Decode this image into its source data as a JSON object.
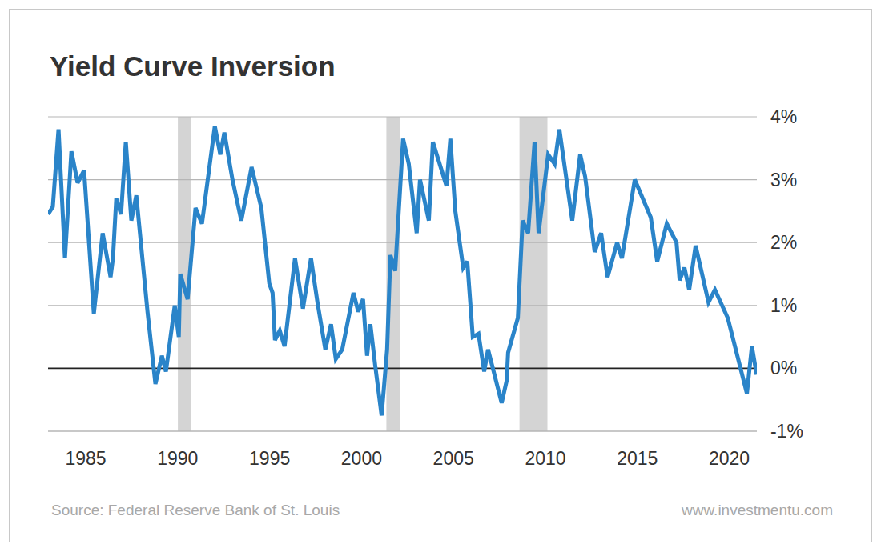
{
  "chart_data": {
    "type": "line",
    "title": "Yield Curve Inversion",
    "source": "Source: Federal Reserve Bank of St. Louis",
    "credit": "www.investmentu.com",
    "color": "#2a84c9",
    "grid": true,
    "xlim": [
      1982.95,
      2021.5
    ],
    "xticks": [
      1985,
      1990,
      1995,
      2000,
      2005,
      2010,
      2015,
      2020
    ],
    "ylim": [
      -1,
      4
    ],
    "yticks": [
      {
        "value": -1,
        "label": "-1%"
      },
      {
        "value": 0,
        "label": "0%"
      },
      {
        "value": 1,
        "label": "1%"
      },
      {
        "value": 2,
        "label": "2%"
      },
      {
        "value": 3,
        "label": "3%"
      },
      {
        "value": 4,
        "label": "4%"
      }
    ],
    "recessions": [
      [
        1990.01,
        1990.71
      ],
      [
        2001.35,
        2002.09
      ],
      [
        2008.59,
        2010.11
      ]
    ],
    "x": [
      1982.95,
      1983.21,
      1983.52,
      1983.87,
      1984.22,
      1984.56,
      1984.91,
      1985.44,
      1985.92,
      1986.35,
      1986.48,
      1986.66,
      1986.92,
      1987.18,
      1987.48,
      1987.75,
      1988.36,
      1988.79,
      1989.14,
      1989.36,
      1989.84,
      1990.06,
      1990.14,
      1990.54,
      1990.97,
      1991.32,
      1992.02,
      1992.32,
      1992.54,
      1992.98,
      1993.46,
      1994.02,
      1994.55,
      1994.98,
      1995.16,
      1995.29,
      1995.55,
      1995.81,
      1996.38,
      1996.81,
      1997.25,
      1997.6,
      1998.03,
      1998.34,
      1998.6,
      1998.95,
      1999.56,
      1999.82,
      2000.08,
      2000.3,
      2000.48,
      2000.74,
      2001.09,
      2001.39,
      2001.57,
      2001.83,
      2002.26,
      2002.57,
      2003.0,
      2003.18,
      2003.66,
      2003.88,
      2004.62,
      2004.83,
      2005.1,
      2005.53,
      2005.75,
      2006.05,
      2006.36,
      2006.67,
      2006.88,
      2007.62,
      2007.89,
      2007.97,
      2008.5,
      2008.76,
      2009.06,
      2009.41,
      2009.63,
      2010.15,
      2010.5,
      2010.76,
      2011.46,
      2011.89,
      2012.16,
      2012.68,
      2013.03,
      2013.38,
      2013.9,
      2014.16,
      2014.86,
      2015.73,
      2016.08,
      2016.6,
      2017.13,
      2017.3,
      2017.56,
      2017.82,
      2018.17,
      2018.87,
      2019.22,
      2019.92,
      2020.96,
      2021.23,
      2021.49
    ],
    "values": [
      2.45,
      2.57,
      3.8,
      1.75,
      3.45,
      2.95,
      3.15,
      0.87,
      2.15,
      1.45,
      1.75,
      2.7,
      2.45,
      3.6,
      2.35,
      2.75,
      0.9,
      -0.25,
      0.2,
      -0.05,
      1.0,
      0.5,
      1.5,
      1.1,
      2.55,
      2.3,
      3.85,
      3.4,
      3.75,
      3.0,
      2.35,
      3.2,
      2.55,
      1.35,
      1.2,
      0.45,
      0.6,
      0.35,
      1.75,
      0.95,
      1.75,
      1.05,
      0.3,
      0.7,
      0.15,
      0.3,
      1.2,
      0.9,
      1.1,
      0.2,
      0.7,
      0.05,
      -0.75,
      0.3,
      1.8,
      1.55,
      3.65,
      3.25,
      2.15,
      3.0,
      2.35,
      3.6,
      2.9,
      3.65,
      2.5,
      1.6,
      1.7,
      0.5,
      0.55,
      -0.05,
      0.3,
      -0.55,
      -0.2,
      0.25,
      0.8,
      2.35,
      2.15,
      3.6,
      2.15,
      3.4,
      3.25,
      3.8,
      2.35,
      3.4,
      3.05,
      1.85,
      2.15,
      1.45,
      2.0,
      1.75,
      3.0,
      2.4,
      1.7,
      2.3,
      2.0,
      1.4,
      1.6,
      1.25,
      1.95,
      1.05,
      1.25,
      0.8,
      -0.4,
      0.35,
      -0.1
    ]
  }
}
